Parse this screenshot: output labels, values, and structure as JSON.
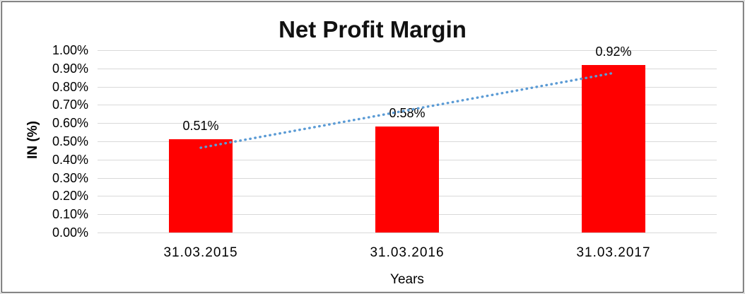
{
  "chart_data": {
    "type": "bar",
    "title": "Net Profit Margin",
    "xlabel": "Years",
    "ylabel": "IN (%)",
    "categories": [
      "31.03.2015",
      "31.03.2016",
      "31.03.2017"
    ],
    "values": [
      0.51,
      0.58,
      0.92
    ],
    "value_labels": [
      "0.51%",
      "0.58%",
      "0.92%"
    ],
    "y_ticks": [
      "1.00%",
      "0.90%",
      "0.80%",
      "0.70%",
      "0.60%",
      "0.50%",
      "0.40%",
      "0.30%",
      "0.20%",
      "0.10%",
      "0.00%"
    ],
    "ylim": [
      0,
      1.0
    ],
    "grid": true,
    "legend": "none",
    "bar_color": "#FF0000",
    "grid_color": "#D9D9D9",
    "text_color": "#000000",
    "trendline": {
      "type": "linear",
      "style": "dotted",
      "color": "#5B9BD5",
      "start_value": 0.465,
      "end_value": 0.875
    }
  }
}
